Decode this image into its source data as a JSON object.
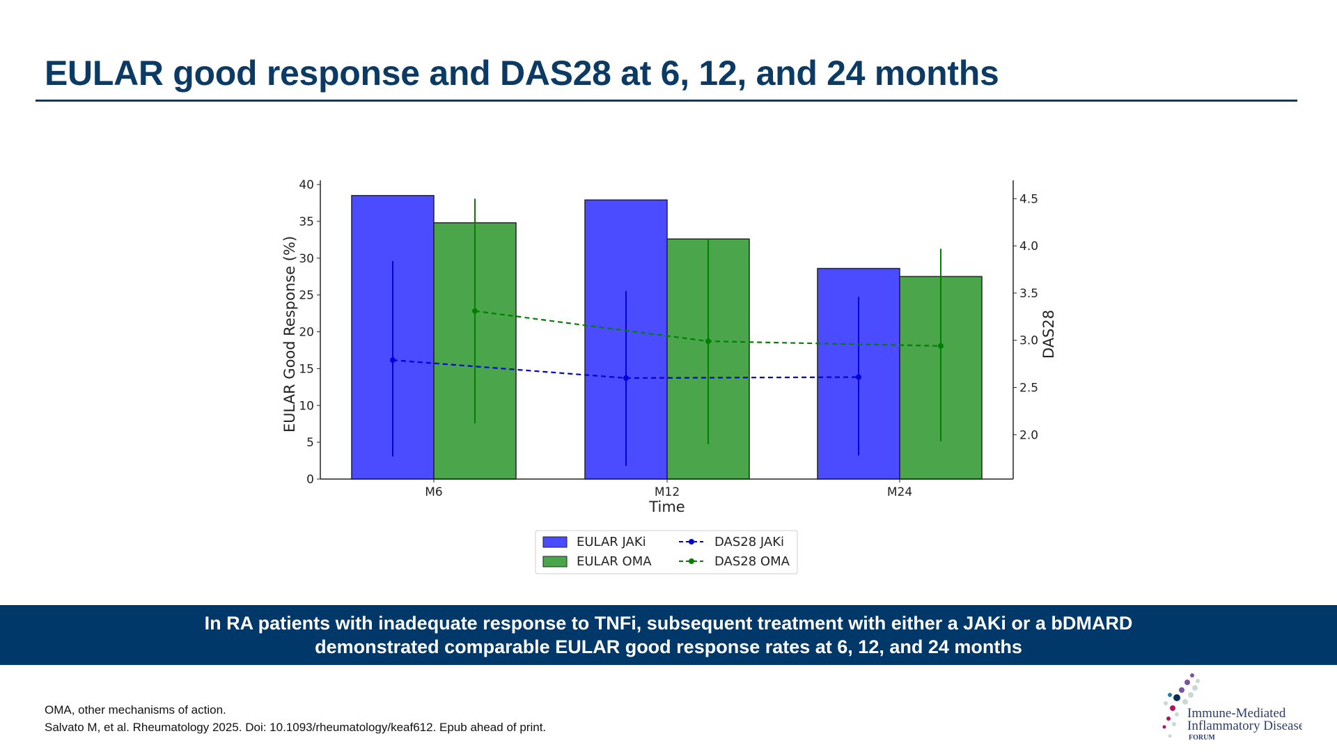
{
  "title": "EULAR good response and DAS28 at 6, 12, and 24 months",
  "banner": {
    "line1": "In RA patients with inadequate response to TNFi, subsequent treatment with either a JAKi or a bDMARD",
    "line2": "demonstrated comparable EULAR good response rates at 6, 12, and 24 months"
  },
  "footnotes": {
    "abbrev": "OMA, other mechanisms of action.",
    "reference": "Salvato M, et al. Rheumatology 2025. Doi: 10.1093/rheumatology/keaf612. Epub ahead of print."
  },
  "logo": {
    "line1": "Immune-Mediated",
    "line2": "Inflammatory Disease",
    "line3": "FORUM"
  },
  "colors": {
    "jaki_bar": "#4b4bff",
    "oma_bar": "#4ba64b",
    "jaki_line": "#0000dd",
    "oma_line": "#008000",
    "navy": "#00386a"
  },
  "chart_data": {
    "type": "bar+line",
    "xlabel": "Time",
    "ylabel": "EULAR Good Response (%)",
    "y2label": "DAS28",
    "categories": [
      "M6",
      "M12",
      "M24"
    ],
    "ylim": [
      0,
      40
    ],
    "yticks": [
      "0",
      "5",
      "10",
      "15",
      "20",
      "25",
      "30",
      "35",
      "40"
    ],
    "y2lim": [
      1.53,
      4.65
    ],
    "y2ticks": [
      "2.0",
      "2.5",
      "3.0",
      "3.5",
      "4.0",
      "4.5"
    ],
    "legend_position": "bottom-center",
    "grid": false,
    "bars": [
      {
        "name": "EULAR JAKi",
        "values": [
          38.5,
          37.9,
          28.6
        ]
      },
      {
        "name": "EULAR OMA",
        "values": [
          34.8,
          32.6,
          27.5
        ]
      }
    ],
    "lines": [
      {
        "name": "DAS28 JAKi",
        "values": [
          2.79,
          2.6,
          2.61
        ],
        "err_low": [
          1.77,
          1.67,
          1.78
        ],
        "err_high": [
          3.84,
          3.52,
          3.46
        ]
      },
      {
        "name": "DAS28 OMA",
        "values": [
          3.31,
          2.99,
          2.94
        ],
        "err_low": [
          2.12,
          1.9,
          1.93
        ],
        "err_high": [
          4.5,
          4.07,
          3.97
        ]
      }
    ]
  }
}
